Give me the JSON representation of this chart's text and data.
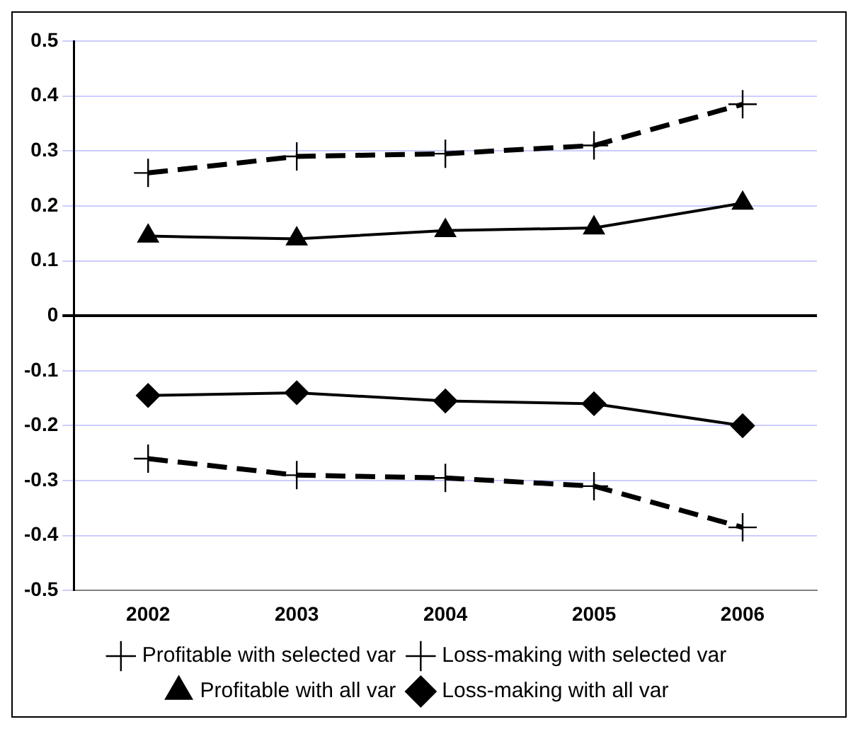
{
  "chart_data": {
    "type": "line",
    "categories": [
      "2002",
      "2003",
      "2004",
      "2005",
      "2006"
    ],
    "series": [
      {
        "name": "Profitable with selected var",
        "color": "#000000",
        "marker": "cross",
        "line_style": "dashed",
        "values": [
          0.26,
          0.29,
          0.295,
          0.31,
          0.385
        ]
      },
      {
        "name": "Loss-making with selected var",
        "color": "#000000",
        "marker": "cross",
        "line_style": "dashed",
        "values": [
          -0.26,
          -0.29,
          -0.295,
          -0.31,
          -0.385
        ]
      },
      {
        "name": "Profitable with all var",
        "color": "#000000",
        "marker": "triangle",
        "line_style": "solid",
        "values": [
          0.145,
          0.14,
          0.155,
          0.16,
          0.205
        ]
      },
      {
        "name": "Loss-making with all var",
        "color": "#000000",
        "marker": "diamond",
        "line_style": "solid",
        "values": [
          -0.145,
          -0.14,
          -0.155,
          -0.16,
          -0.2
        ]
      }
    ],
    "ylim": [
      -0.5,
      0.5
    ],
    "yticks": [
      -0.5,
      -0.4,
      -0.3,
      -0.2,
      -0.1,
      0,
      0.1,
      0.2,
      0.3,
      0.4,
      0.5
    ],
    "grid": "y",
    "legend": "bottom"
  }
}
